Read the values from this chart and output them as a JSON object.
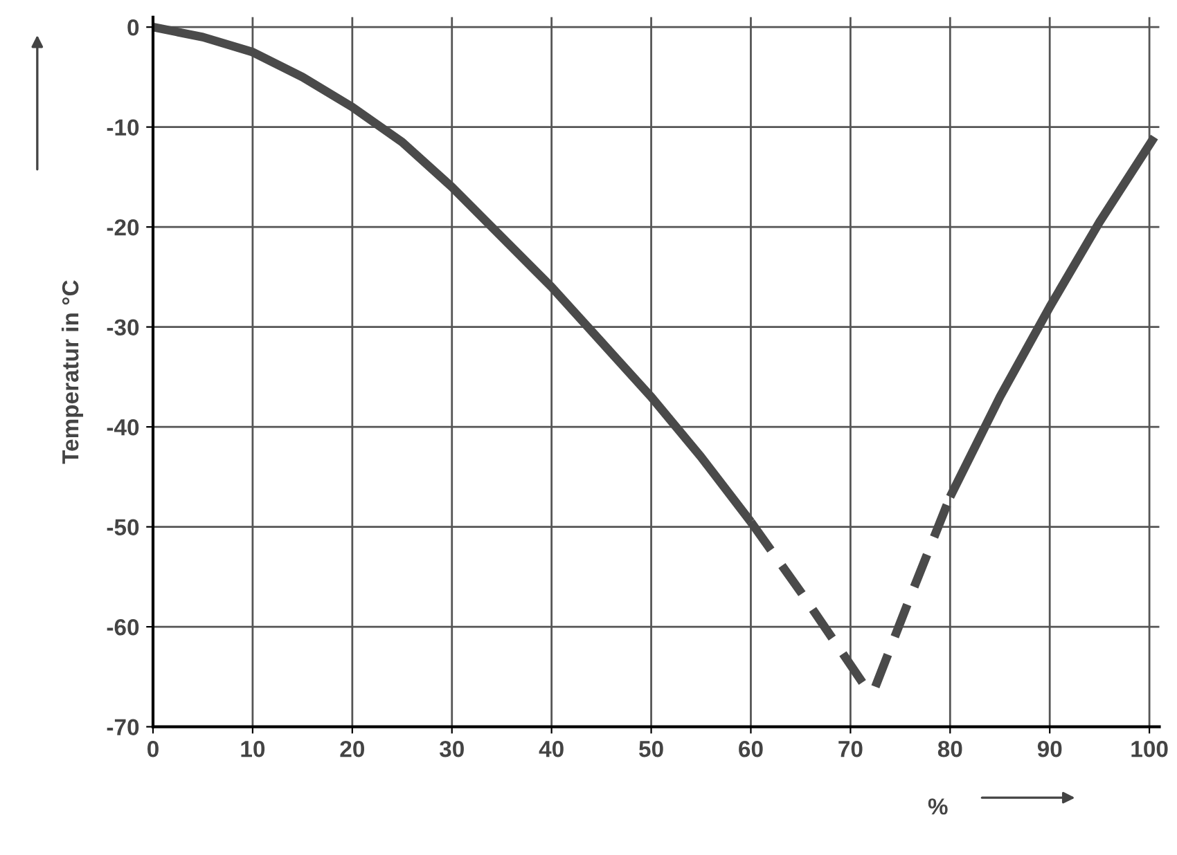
{
  "chart_data": {
    "type": "line",
    "xlabel": "%",
    "ylabel": "Temperatur in °C",
    "xlim": [
      0,
      101
    ],
    "ylim": [
      -70,
      1
    ],
    "xticks": [
      0,
      10,
      20,
      30,
      40,
      50,
      60,
      70,
      80,
      90,
      100
    ],
    "yticks": [
      0,
      -10,
      -20,
      -30,
      -40,
      -50,
      -60,
      -70
    ],
    "grid": true,
    "series": [
      {
        "color": "#4a4a4a",
        "line_style": "solid",
        "x": [
          0,
          5,
          10,
          15,
          20,
          25,
          30,
          35,
          40,
          45,
          50,
          55,
          60
        ],
        "values": [
          0,
          -1,
          -2.5,
          -5,
          -8,
          -11.5,
          -16,
          -21,
          -26,
          -31.5,
          -37,
          -43,
          -49.5
        ]
      },
      {
        "color": "#4a4a4a",
        "line_style": "dashed",
        "x": [
          60,
          65,
          71.5
        ],
        "values": [
          -49.5,
          -56.5,
          -66
        ]
      },
      {
        "color": "#4a4a4a",
        "line_style": "dashed",
        "x": [
          72.5,
          76,
          80
        ],
        "values": [
          -66,
          -57,
          -47
        ]
      },
      {
        "color": "#4a4a4a",
        "line_style": "solid",
        "x": [
          80,
          85,
          90,
          95,
          100.5
        ],
        "values": [
          -47,
          -37,
          -28,
          -19.5,
          -11
        ]
      }
    ]
  }
}
